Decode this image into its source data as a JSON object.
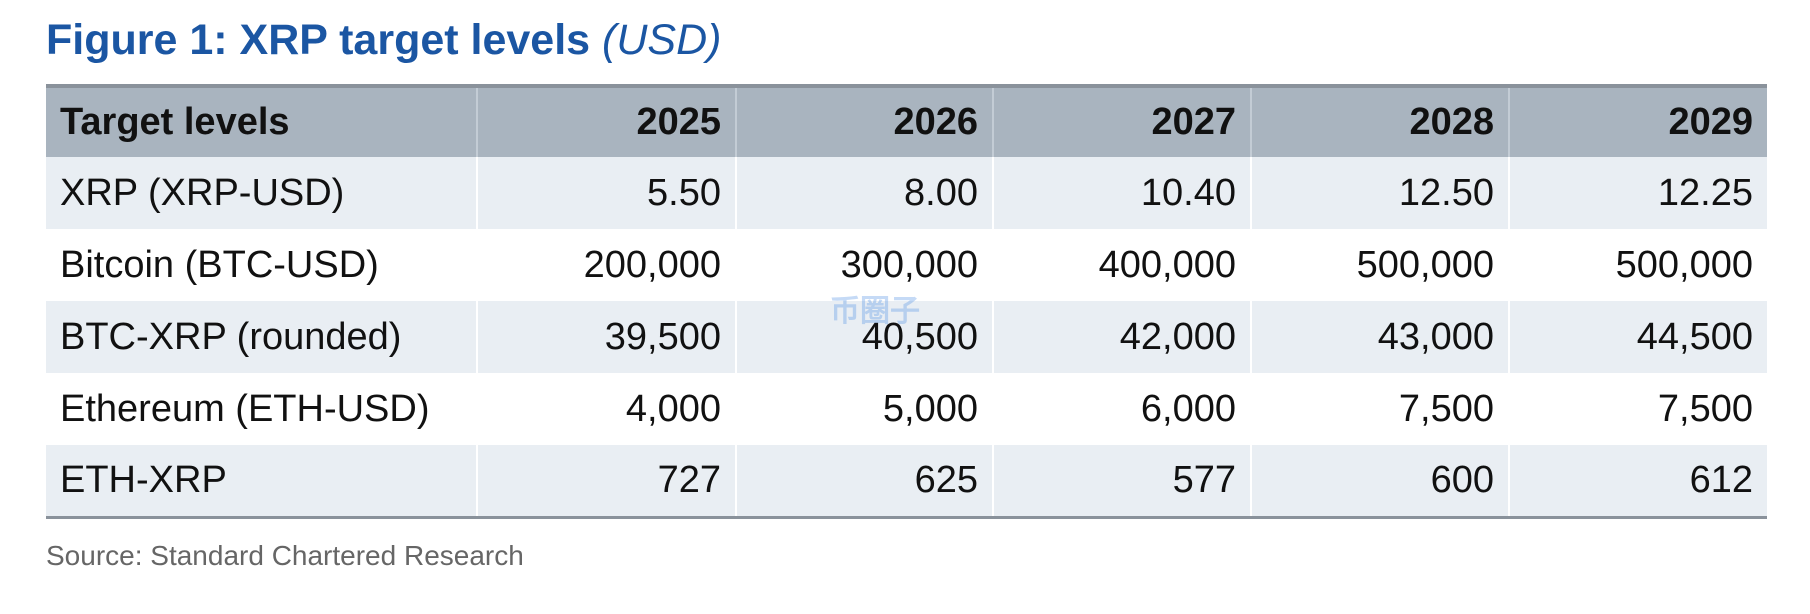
{
  "title": "Figure 1: XRP target levels",
  "title_unit": "(USD)",
  "table": {
    "header": [
      "Target levels",
      "2025",
      "2026",
      "2027",
      "2028",
      "2029"
    ],
    "rows": [
      [
        "XRP (XRP-USD)",
        "5.50",
        "8.00",
        "10.40",
        "12.50",
        "12.25"
      ],
      [
        "Bitcoin (BTC-USD)",
        "200,000",
        "300,000",
        "400,000",
        "500,000",
        "500,000"
      ],
      [
        "BTC-XRP (rounded)",
        "39,500",
        "40,500",
        "42,000",
        "43,000",
        "44,500"
      ],
      [
        "Ethereum (ETH-USD)",
        "4,000",
        "5,000",
        "6,000",
        "7,500",
        "7,500"
      ],
      [
        "ETH-XRP",
        "727",
        "625",
        "577",
        "600",
        "612"
      ]
    ]
  },
  "source": "Source: Standard Chartered Research",
  "watermark": "币圈子"
}
